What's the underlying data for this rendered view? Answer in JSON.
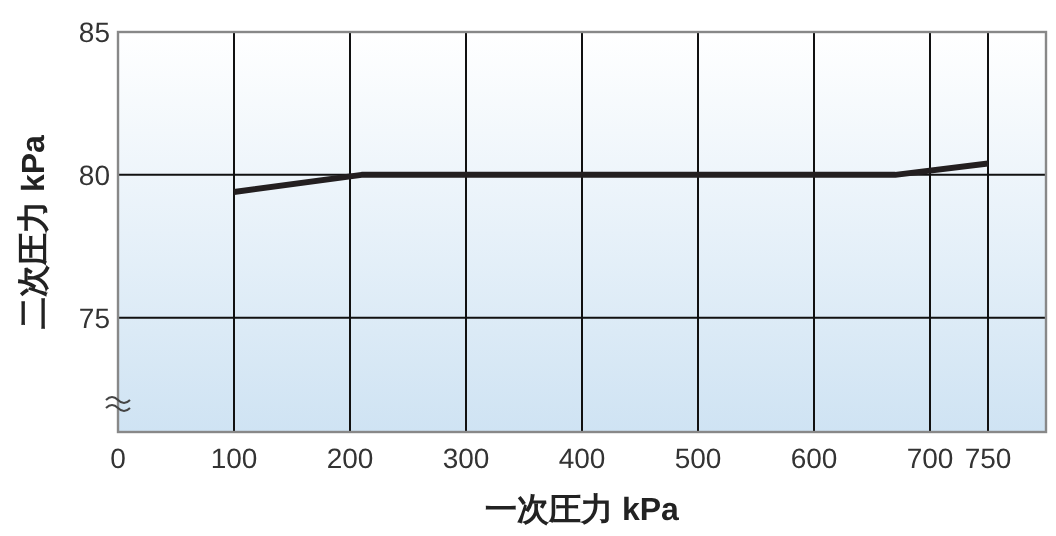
{
  "chart_data": {
    "type": "line",
    "xlabel": "一次圧力 kPa",
    "ylabel": "二次圧力 kPa",
    "x": [
      100,
      210,
      670,
      750
    ],
    "series": [
      {
        "color": "#231f20",
        "values": [
          79.4,
          80,
          80,
          80.4
        ]
      }
    ],
    "xlim": [
      0,
      800
    ],
    "xticks": [
      0,
      100,
      200,
      300,
      400,
      500,
      600,
      700,
      750
    ],
    "ylim": [
      71,
      85
    ],
    "yticks": [
      75,
      80,
      85
    ],
    "grid": true,
    "marker": "none",
    "line_style": "solid"
  }
}
